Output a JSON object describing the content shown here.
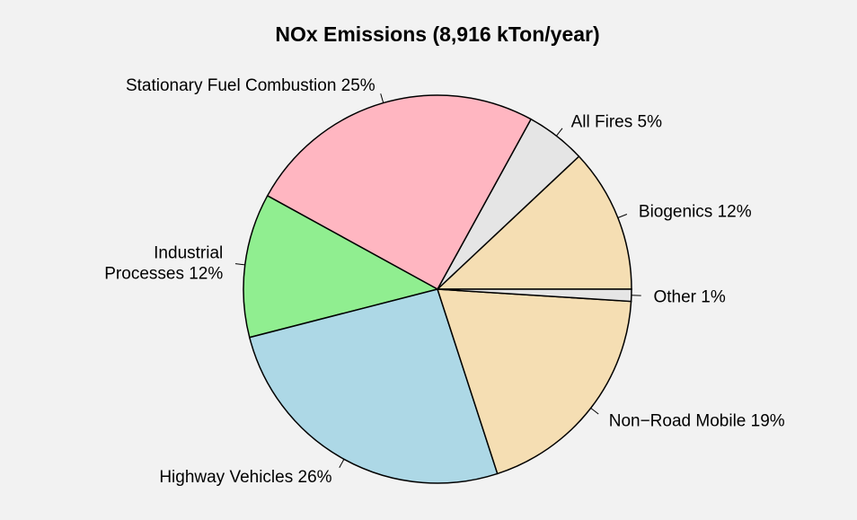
{
  "chart_data": {
    "type": "pie",
    "title": "NOx Emissions (8,916 kTon/year)",
    "values": [
      12,
      5,
      25,
      12,
      26,
      19,
      1
    ],
    "value_labels": [
      "Biogenics 12%",
      "All Fires 5%",
      "Stationary Fuel Combustion 25%",
      "Industrial\nProcesses 12%",
      "Highway Vehicles 26%",
      "Non−Road Mobile 19%",
      "Other 1%"
    ],
    "colors": [
      "#f5deb3",
      "#e5e5e5",
      "#ffb6c1",
      "#90ee90",
      "#add8e6",
      "#f5deb3",
      "#e5e5e5"
    ]
  }
}
